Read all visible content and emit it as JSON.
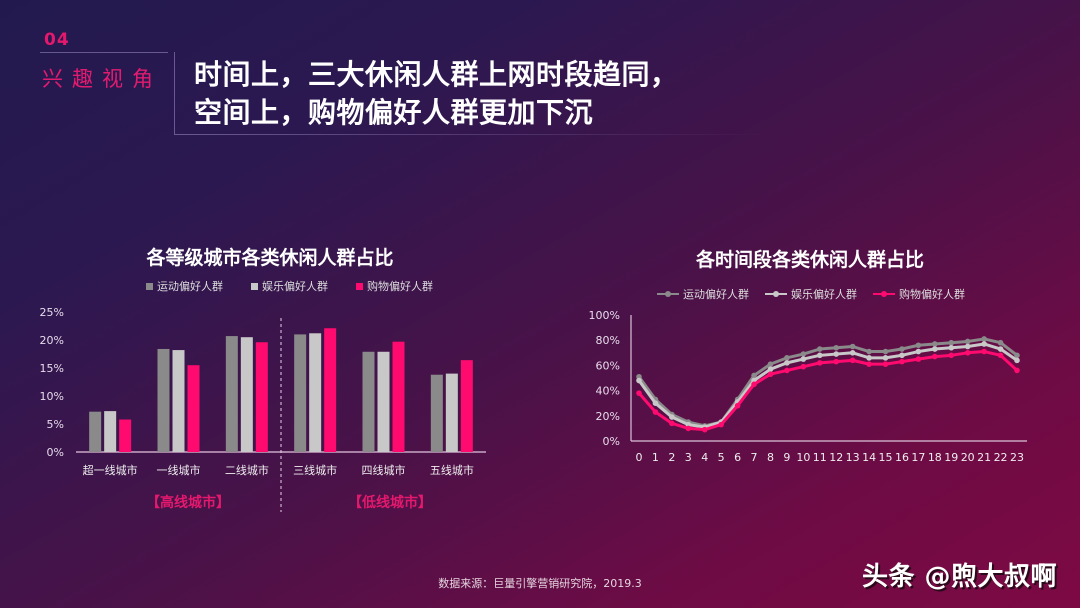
{
  "header": {
    "section_number": "04",
    "section_label": "兴趣视角",
    "title_line1": "时间上，三大休闲人群上网时段趋同，",
    "title_line2": "空间上，购物偏好人群更加下沉"
  },
  "colors": {
    "sports": "#8a8a8a",
    "entertainment": "#c8c8c8",
    "shopping": "#ff0a6e",
    "accent": "#e4186d"
  },
  "legend": {
    "sports": "运动偏好人群",
    "entertainment": "娱乐偏好人群",
    "shopping": "购物偏好人群"
  },
  "group_labels": {
    "high": "【高线城市】",
    "low": "【低线城市】"
  },
  "footer": {
    "source": "数据来源：巨量引擎营销研究院，2019.3",
    "watermark": "头条 @煦大叔啊"
  },
  "chart_data": [
    {
      "type": "bar",
      "title": "各等级城市各类休闲人群占比",
      "categories": [
        "超一线城市",
        "一线城市",
        "二线城市",
        "三线城市",
        "四线城市",
        "五线城市"
      ],
      "series": [
        {
          "name": "运动偏好人群",
          "values": [
            7.2,
            18.4,
            20.7,
            21.0,
            17.9,
            13.8
          ]
        },
        {
          "name": "娱乐偏好人群",
          "values": [
            7.3,
            18.2,
            20.5,
            21.2,
            17.9,
            14.0
          ]
        },
        {
          "name": "购物偏好人群",
          "values": [
            5.8,
            15.5,
            19.6,
            22.1,
            19.7,
            16.4
          ]
        }
      ],
      "yticks": [
        "0%",
        "5%",
        "10%",
        "15%",
        "20%",
        "25%"
      ],
      "ylim": [
        0,
        25
      ],
      "xlabel": "",
      "ylabel": "",
      "annotations": [
        "【高线城市】",
        "【低线城市】"
      ],
      "divider_after_index": 2,
      "legend_position": "top",
      "grid": false
    },
    {
      "type": "line",
      "title": "各时间段各类休闲人群占比",
      "x": [
        0,
        1,
        2,
        3,
        4,
        5,
        6,
        7,
        8,
        9,
        10,
        11,
        12,
        13,
        14,
        15,
        16,
        17,
        18,
        19,
        20,
        21,
        22,
        23
      ],
      "series": [
        {
          "name": "运动偏好人群",
          "values": [
            51,
            33,
            21,
            15,
            12,
            15,
            33,
            52,
            61,
            66,
            69,
            73,
            74,
            75,
            71,
            71,
            73,
            76,
            77,
            78,
            79,
            81,
            78,
            68
          ]
        },
        {
          "name": "娱乐偏好人群",
          "values": [
            48,
            30,
            19,
            13,
            11,
            15,
            31,
            48,
            57,
            62,
            65,
            68,
            69,
            70,
            66,
            66,
            68,
            71,
            73,
            74,
            75,
            77,
            73,
            64
          ]
        },
        {
          "name": "购物偏好人群",
          "values": [
            38,
            23,
            14,
            10,
            9,
            13,
            28,
            45,
            53,
            56,
            59,
            62,
            63,
            64,
            61,
            61,
            63,
            65,
            67,
            68,
            70,
            71,
            68,
            56
          ]
        }
      ],
      "yticks": [
        "0%",
        "20%",
        "40%",
        "60%",
        "80%",
        "100%"
      ],
      "ylim": [
        0,
        100
      ],
      "xlabel": "",
      "ylabel": "",
      "legend_position": "top",
      "grid": false
    }
  ]
}
